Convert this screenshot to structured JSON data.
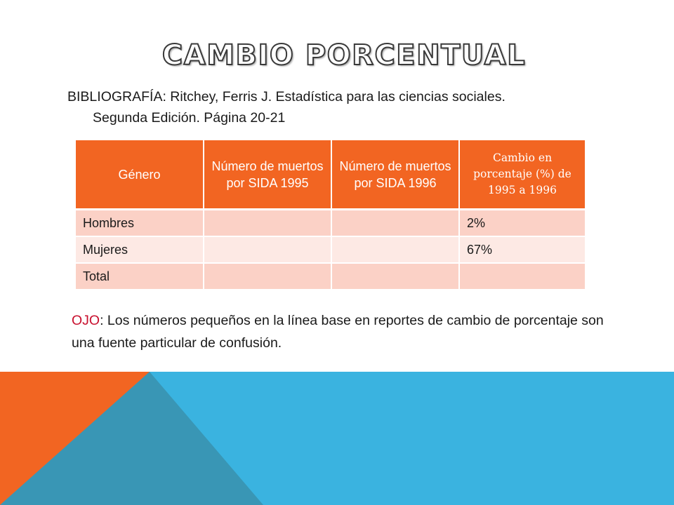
{
  "slide": {
    "title": "CAMBIO PORCENTUAL",
    "bibliography": {
      "label": "BIBLIOGRAFÍA:",
      "line1": "Ritchey, Ferris J. Estadística para las ciencias sociales.",
      "line2": "Segunda Edición. Página 20-21"
    },
    "table": {
      "headers": [
        "Género",
        "Número de muertos por SIDA 1995",
        "Número de muertos por SIDA 1996",
        "Cambio en porcentaje (%) de 1995 a 1996"
      ],
      "rows": [
        [
          "Hombres",
          "",
          "",
          "2%"
        ],
        [
          "Mujeres",
          "",
          "",
          "67%"
        ],
        [
          "Total",
          "",
          "",
          ""
        ]
      ]
    },
    "note": {
      "label": "OJO",
      "text": ": Los números pequeños en la línea base en reportes de cambio de porcentaje son una fuente particular de confusión."
    }
  },
  "colors": {
    "accent_orange": "#f26522",
    "row_light": "#fde9e4",
    "row_dark": "#fbd1c6",
    "band_blue": "#3ab3e0",
    "band_teal": "#3996b5",
    "band_orange": "#f26522",
    "warning_red": "#c8102e"
  }
}
